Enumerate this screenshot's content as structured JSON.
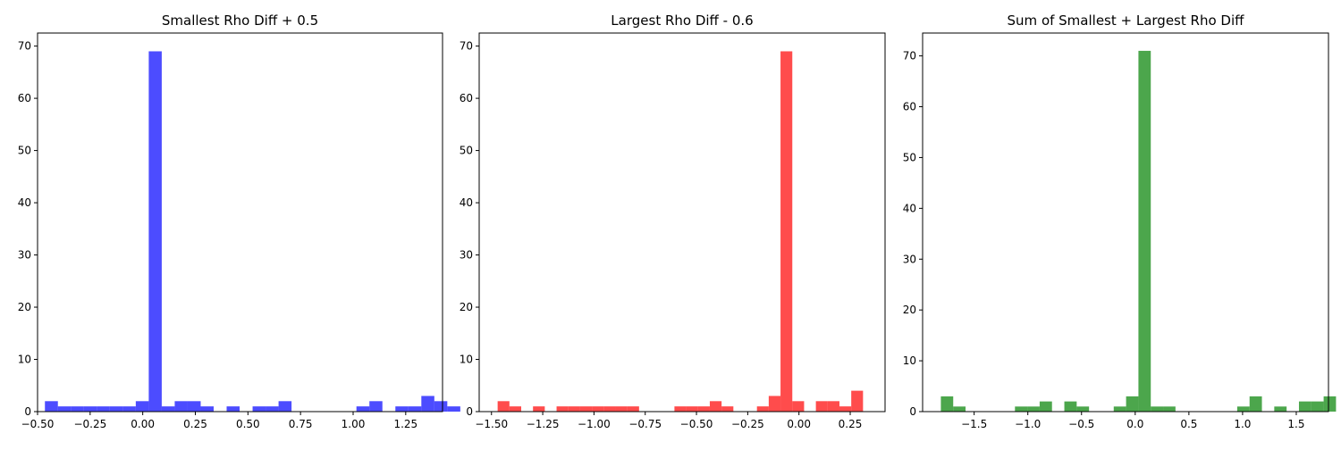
{
  "chart_data": [
    {
      "type": "bar",
      "title": "Smallest Rho Diff + 0.5",
      "color": "#0000ff",
      "opacity": 0.7,
      "xlim": [
        -0.5,
        1.425
      ],
      "ylim": [
        0,
        72.5
      ],
      "xticks": [
        -0.5,
        -0.25,
        0.0,
        0.25,
        0.5,
        0.75,
        1.0,
        1.25
      ],
      "xtick_labels": [
        "−0.50",
        "−0.25",
        "0.00",
        "0.25",
        "0.50",
        "0.75",
        "1.00",
        "1.25"
      ],
      "yticks": [
        0,
        10,
        20,
        30,
        40,
        50,
        60,
        70
      ],
      "ytick_labels": [
        "0",
        "10",
        "20",
        "30",
        "40",
        "50",
        "60",
        "70"
      ],
      "bin_start": -0.465,
      "bin_width": 0.0617,
      "values": [
        2,
        1,
        1,
        1,
        1,
        1,
        1,
        2,
        69,
        1,
        2,
        2,
        1,
        0,
        1,
        0,
        1,
        1,
        2,
        0,
        0,
        0,
        0,
        0,
        1,
        2,
        0,
        1,
        1,
        3,
        2,
        1
      ]
    },
    {
      "type": "bar",
      "title": "Largest Rho Diff - 0.6",
      "color": "#ff0000",
      "opacity": 0.7,
      "xlim": [
        -1.56,
        0.42
      ],
      "ylim": [
        0,
        72.5
      ],
      "xticks": [
        -1.5,
        -1.25,
        -1.0,
        -0.75,
        -0.5,
        -0.25,
        0.0,
        0.25
      ],
      "xtick_labels": [
        "−1.50",
        "−1.25",
        "−1.00",
        "−0.75",
        "−0.50",
        "−0.25",
        "0.00",
        "0.25"
      ],
      "yticks": [
        0,
        10,
        20,
        30,
        40,
        50,
        60,
        70
      ],
      "ytick_labels": [
        "0",
        "10",
        "20",
        "30",
        "40",
        "50",
        "60",
        "70"
      ],
      "bin_start": -1.47,
      "bin_width": 0.0575,
      "values": [
        2,
        1,
        0,
        1,
        0,
        1,
        1,
        1,
        1,
        1,
        1,
        1,
        0,
        0,
        0,
        1,
        1,
        1,
        2,
        1,
        0,
        0,
        1,
        3,
        69,
        2,
        0,
        2,
        2,
        1,
        4
      ]
    },
    {
      "type": "bar",
      "title": "Sum of Smallest + Largest Rho Diff",
      "color": "#008000",
      "opacity": 0.7,
      "xlim": [
        -1.98,
        1.8
      ],
      "ylim": [
        0,
        74.5
      ],
      "xticks": [
        -1.5,
        -1.0,
        -0.5,
        0.0,
        0.5,
        1.0,
        1.5
      ],
      "xtick_labels": [
        "−1.5",
        "−1.0",
        "−0.5",
        "0.0",
        "0.5",
        "1.0",
        "1.5"
      ],
      "yticks": [
        0,
        10,
        20,
        30,
        40,
        50,
        60,
        70
      ],
      "ytick_labels": [
        "0",
        "10",
        "20",
        "30",
        "40",
        "50",
        "60",
        "70"
      ],
      "bin_start": -1.81,
      "bin_width": 0.115,
      "values": [
        3,
        1,
        0,
        0,
        0,
        0,
        1,
        1,
        2,
        0,
        2,
        1,
        0,
        0,
        1,
        3,
        71,
        1,
        1,
        0,
        0,
        0,
        0,
        0,
        1,
        3,
        0,
        1,
        0,
        2,
        2,
        3
      ]
    }
  ]
}
